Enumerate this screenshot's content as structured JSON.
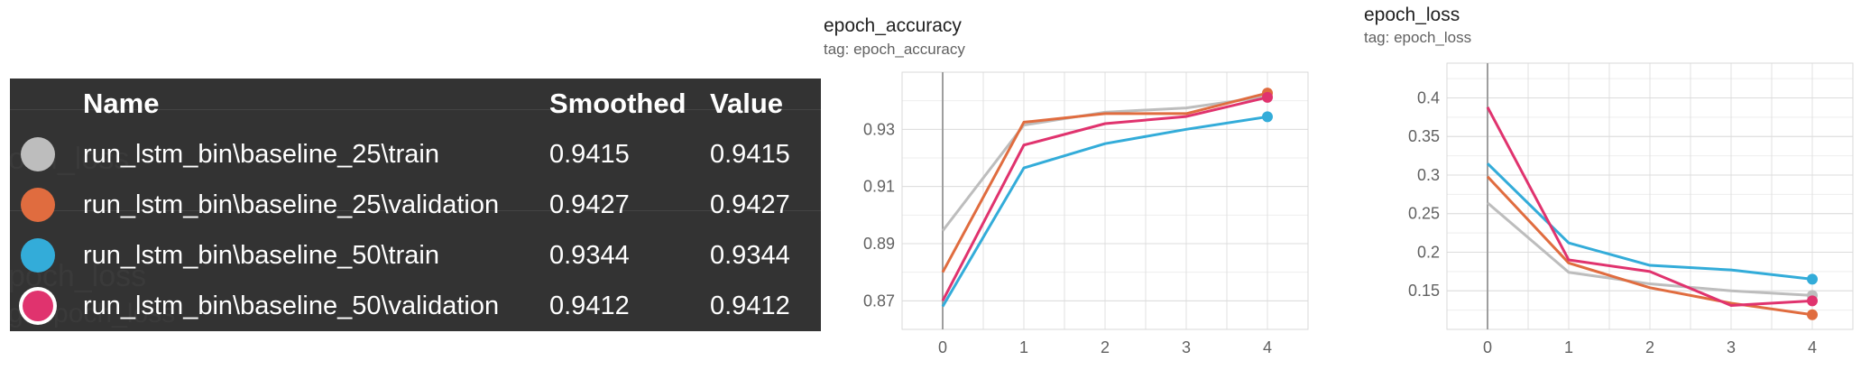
{
  "tooltip": {
    "headers": {
      "name": "Name",
      "smoothed": "Smoothed",
      "value": "Value"
    },
    "ghost_text": [
      "och_loss",
      "poch_loss",
      "g: epoch_loss"
    ],
    "rows": [
      {
        "name": "run_lstm_bin\\baseline_25\\train",
        "smoothed": "0.9415",
        "value": "0.9415",
        "color": "#bdbdbd"
      },
      {
        "name": "run_lstm_bin\\baseline_25\\validation",
        "smoothed": "0.9427",
        "value": "0.9427",
        "color": "#e06c3f"
      },
      {
        "name": "run_lstm_bin\\baseline_50\\train",
        "smoothed": "0.9344",
        "value": "0.9344",
        "color": "#33acd9"
      },
      {
        "name": "run_lstm_bin\\baseline_50\\validation",
        "smoothed": "0.9412",
        "value": "0.9412",
        "color": "#e0336e"
      }
    ]
  },
  "chart_data": [
    {
      "type": "line",
      "title": "epoch_accuracy",
      "subtitle": "tag: epoch_accuracy",
      "x": [
        0,
        1,
        2,
        3,
        4
      ],
      "xlim": [
        -0.5,
        4.5
      ],
      "ylim": [
        0.86,
        0.95
      ],
      "yticks": [
        0.87,
        0.89,
        0.91,
        0.93
      ],
      "ytick_labels": [
        "0.87",
        "0.89",
        "0.91",
        "0.93"
      ],
      "xticks": [
        0,
        1,
        2,
        3,
        4
      ],
      "xtick_labels": [
        "0",
        "1",
        "2",
        "3",
        "4"
      ],
      "grid": true,
      "series": [
        {
          "color": "#bdbdbd",
          "values": [
            0.8945,
            0.9315,
            0.936,
            0.9375,
            0.9415
          ]
        },
        {
          "color": "#e06c3f",
          "values": [
            0.88,
            0.9325,
            0.9355,
            0.9355,
            0.9427
          ]
        },
        {
          "color": "#33acd9",
          "values": [
            0.868,
            0.9165,
            0.925,
            0.93,
            0.9344
          ]
        },
        {
          "color": "#e0336e",
          "values": [
            0.87,
            0.9245,
            0.932,
            0.9345,
            0.9412
          ]
        }
      ]
    },
    {
      "type": "line",
      "title": "epoch_loss",
      "subtitle": "tag: epoch_loss",
      "x": [
        0,
        1,
        2,
        3,
        4
      ],
      "xlim": [
        -0.5,
        4.5
      ],
      "ylim": [
        0.1,
        0.445
      ],
      "yticks": [
        0.15,
        0.2,
        0.25,
        0.3,
        0.35,
        0.4
      ],
      "ytick_labels": [
        "0.15",
        "0.2",
        "0.25",
        "0.3",
        "0.35",
        "0.4"
      ],
      "xticks": [
        0,
        1,
        2,
        3,
        4
      ],
      "xtick_labels": [
        "0",
        "1",
        "2",
        "3",
        "4"
      ],
      "grid": true,
      "series": [
        {
          "color": "#bdbdbd",
          "values": [
            0.264,
            0.174,
            0.159,
            0.15,
            0.144
          ]
        },
        {
          "color": "#e06c3f",
          "values": [
            0.298,
            0.186,
            0.154,
            0.134,
            0.119
          ]
        },
        {
          "color": "#33acd9",
          "values": [
            0.315,
            0.212,
            0.183,
            0.177,
            0.165
          ]
        },
        {
          "color": "#e0336e",
          "values": [
            0.388,
            0.19,
            0.175,
            0.131,
            0.137
          ]
        }
      ]
    }
  ]
}
